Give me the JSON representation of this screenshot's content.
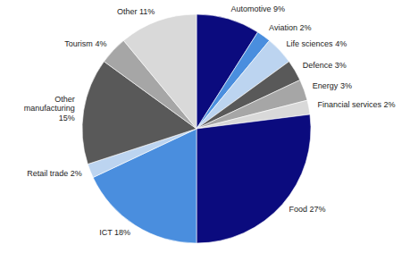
{
  "chart_data": {
    "type": "pie",
    "categories": [
      "Automotive",
      "Aviation",
      "Life sciences",
      "Defence",
      "Energy",
      "Financial services",
      "Food",
      "ICT",
      "Retail trade",
      "Other manufacturing",
      "Tourism",
      "Other"
    ],
    "values": [
      9,
      2,
      4,
      3,
      3,
      2,
      27,
      18,
      2,
      15,
      4,
      11
    ],
    "value_labels": [
      "9%",
      "2%",
      "4%",
      "3%",
      "3%",
      "2%",
      "27%",
      "18%",
      "2%",
      "15%",
      "4%",
      "11%"
    ],
    "colors": [
      "#0b0b7e",
      "#4a8ede",
      "#bcd4f0",
      "#595959",
      "#a6a6a6",
      "#d9d9d9",
      "#0b0b7e",
      "#4a8ede",
      "#bcd4f0",
      "#595959",
      "#a6a6a6",
      "#d9d9d9"
    ],
    "data_labels": true
  }
}
